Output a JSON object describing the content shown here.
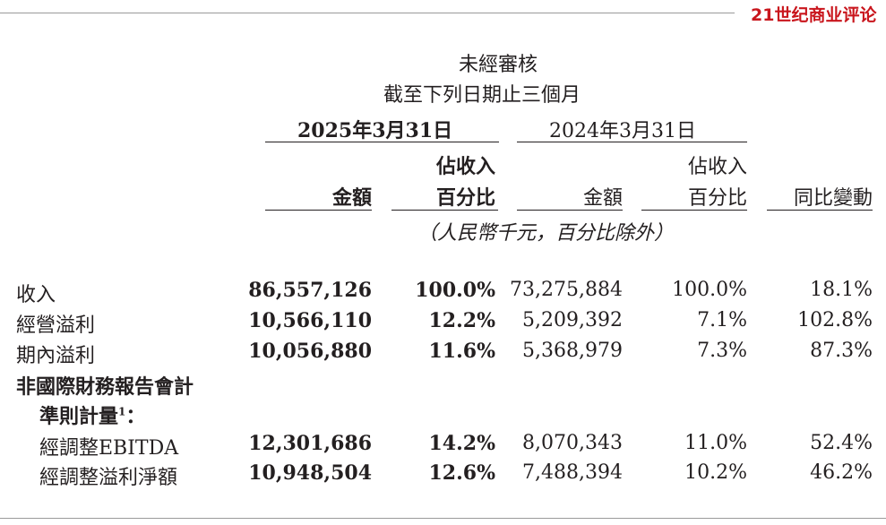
{
  "watermark": "21世纪商业评论",
  "header": {
    "line1": "未經審核",
    "line2": "截至下列日期止三個月",
    "period_current": "2025年3月31日",
    "period_prior": "2024年3月31日",
    "col_amount": "金額",
    "col_pct_line1": "佔收入",
    "col_pct_line2": "百分比",
    "col_yoy": "同比變動",
    "unit_note": "（人民幣千元，百分比除外）"
  },
  "rows": [
    {
      "label": "收入",
      "cur_amount": "86,557,126",
      "cur_pct": "100.0%",
      "prior_amount": "73,275,884",
      "prior_pct": "100.0%",
      "yoy": "18.1%"
    },
    {
      "label": "經營溢利",
      "cur_amount": "10,566,110",
      "cur_pct": "12.2%",
      "prior_amount": "5,209,392",
      "prior_pct": "7.1%",
      "yoy": "102.8%"
    },
    {
      "label": "期內溢利",
      "cur_amount": "10,056,880",
      "cur_pct": "11.6%",
      "prior_amount": "5,368,979",
      "prior_pct": "7.3%",
      "yoy": "87.3%"
    }
  ],
  "non_ifrs": {
    "heading_line1": "非國際財務報告會計",
    "heading_line2": "準則計量",
    "footnote_mark": "1",
    "heading_colon": "：",
    "rows": [
      {
        "label": "經調整EBITDA",
        "cur_amount": "12,301,686",
        "cur_pct": "14.2%",
        "prior_amount": "8,070,343",
        "prior_pct": "11.0%",
        "yoy": "52.4%"
      },
      {
        "label": "經調整溢利淨額",
        "cur_amount": "10,948,504",
        "cur_pct": "12.6%",
        "prior_amount": "7,488,394",
        "prior_pct": "10.2%",
        "yoy": "46.2%"
      }
    ]
  }
}
